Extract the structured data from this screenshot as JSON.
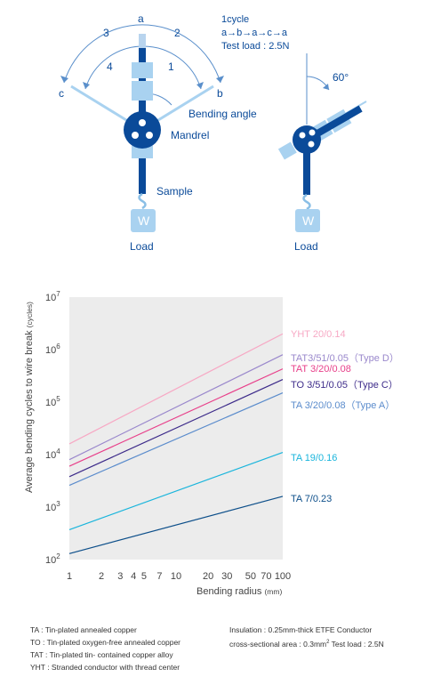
{
  "diagram": {
    "cycle_title": "1cycle",
    "cycle_sequence": "a→b→a→c→a",
    "test_load": "Test load : 2.5N",
    "pos_a": "a",
    "pos_b": "b",
    "pos_c": "c",
    "num_1": "1",
    "num_2": "2",
    "num_3": "3",
    "num_4": "4",
    "bending_angle": "Bending angle",
    "mandrel": "Mandrel",
    "sample": "Sample",
    "load_left": "Load",
    "load_right": "Load",
    "weight_left": "W",
    "weight_right": "W",
    "angle": "60°"
  },
  "chart_data": {
    "type": "line",
    "xlabel": "Bending radius",
    "xunit": "(mm)",
    "ylabel": "Average bending cycles to wire break",
    "yunit": "(cycles)",
    "x_scale": "log",
    "y_scale": "log",
    "xlim": [
      1,
      100
    ],
    "ylim": [
      100,
      10000000
    ],
    "x_ticks": [
      1,
      2,
      3,
      4,
      5,
      7,
      10,
      20,
      30,
      50,
      70,
      100
    ],
    "x_tick_labels": [
      "1",
      "2",
      "3",
      "4",
      "5",
      "7",
      "10",
      "20",
      "30",
      "50",
      "70",
      "100"
    ],
    "y_ticks": [
      100,
      1000,
      10000,
      100000,
      1000000,
      10000000
    ],
    "y_tick_base": "10",
    "y_tick_exponents": [
      "2",
      "3",
      "4",
      "5",
      "6",
      "7"
    ],
    "grid": false,
    "background": "#ececec",
    "series": [
      {
        "name": "YHT 20/0.14",
        "color": "#f7a8c4",
        "x": [
          1,
          100
        ],
        "y": [
          16000,
          2000000
        ]
      },
      {
        "name": "TAT3/51/0.05（Type D）",
        "color": "#9a88cc",
        "x": [
          1,
          100
        ],
        "y": [
          8000,
          800000
        ]
      },
      {
        "name": "TAT 3/20/0.08",
        "color": "#e8408a",
        "x": [
          1,
          100
        ],
        "y": [
          6000,
          430000
        ]
      },
      {
        "name": "TO 3/51/0.05（Type C）",
        "color": "#3d2b8a",
        "x": [
          1,
          100
        ],
        "y": [
          3800,
          270000
        ]
      },
      {
        "name": "TA 3/20/0.08（Type A）",
        "color": "#5b8ccc",
        "x": [
          1,
          100
        ],
        "y": [
          2600,
          150000
        ]
      },
      {
        "name": "TA 19/0.16",
        "color": "#1ab5dc",
        "x": [
          1,
          100
        ],
        "y": [
          370,
          11000
        ]
      },
      {
        "name": "TA 7/0.23",
        "color": "#0d4f8a",
        "x": [
          1,
          100
        ],
        "y": [
          130,
          1600
        ]
      }
    ]
  },
  "notes": {
    "ta": "TA : Tin-plated annealed copper",
    "to": "TO : Tin-plated oxygen-free annealed copper",
    "tat": "TAT : Tin-plated tin- contained copper alloy",
    "yht": "YHT : Stranded conductor with thread center",
    "insulation": "Insulation : 0.25mm-thick ETFE Conductor",
    "area_prefix": "cross-sectional area : 0.3mm",
    "area_sup": "2",
    "area_suffix": " Test load : 2.5N"
  }
}
